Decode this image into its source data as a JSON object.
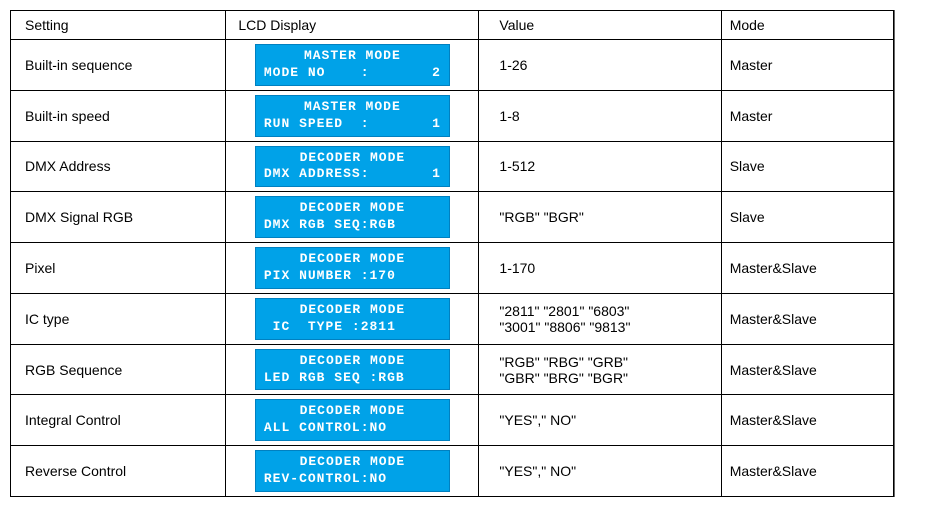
{
  "headers": {
    "setting": "Setting",
    "lcd": "LCD Display",
    "value": "Value",
    "mode": "Mode"
  },
  "rows": [
    {
      "setting": "Built-in sequence",
      "lcd_line1": "MASTER MODE",
      "lcd_line2_left": "MODE NO    :",
      "lcd_line2_right": "2",
      "value": "1-26",
      "mode": "Master"
    },
    {
      "setting": "Built-in speed",
      "lcd_line1": "MASTER MODE",
      "lcd_line2_left": "RUN SPEED  :",
      "lcd_line2_right": "1",
      "value": "1-8",
      "mode": "Master"
    },
    {
      "setting": "DMX Address",
      "lcd_line1": "DECODER MODE",
      "lcd_line2_left": "DMX ADDRESS:",
      "lcd_line2_right": "1",
      "value": "1-512",
      "mode": "Slave"
    },
    {
      "setting": "DMX Signal RGB",
      "lcd_line1": "DECODER MODE",
      "lcd_line2_left": "DMX RGB SEQ:RGB",
      "lcd_line2_right": "",
      "value": "\"RGB\" \"BGR\"",
      "mode": "Slave"
    },
    {
      "setting": "Pixel",
      "lcd_line1": "DECODER MODE",
      "lcd_line2_left": "PIX NUMBER :170",
      "lcd_line2_right": "",
      "value": "1-170",
      "mode": "Master&Slave"
    },
    {
      "setting": "IC type",
      "lcd_line1": "DECODER MODE",
      "lcd_line2_left": " IC  TYPE :2811",
      "lcd_line2_right": "",
      "value": "\"2811\" \"2801\" \"6803\"\n\"3001\" \"8806\" \"9813\"",
      "mode": "Master&Slave"
    },
    {
      "setting": "RGB Sequence",
      "lcd_line1": "DECODER MODE",
      "lcd_line2_left": "LED RGB SEQ :RGB",
      "lcd_line2_right": "",
      "value": "\"RGB\" \"RBG\" \"GRB\"\n\"GBR\" \"BRG\" \"BGR\"",
      "mode": "Master&Slave"
    },
    {
      "setting": "Integral Control",
      "lcd_line1": "DECODER MODE",
      "lcd_line2_left": "ALL CONTROL:NO",
      "lcd_line2_right": "",
      "value": "\"YES\",\" NO\"",
      "mode": "Master&Slave"
    },
    {
      "setting": "Reverse Control",
      "lcd_line1": "DECODER MODE",
      "lcd_line2_left": "REV-CONTROL:NO",
      "lcd_line2_right": "",
      "value": "\"YES\",\" NO\"",
      "mode": "Master&Slave"
    }
  ],
  "style": {
    "lcd_bg": "#00a2e8",
    "lcd_fg": "#ffffff",
    "border_color": "#000000",
    "font_size": 14
  }
}
